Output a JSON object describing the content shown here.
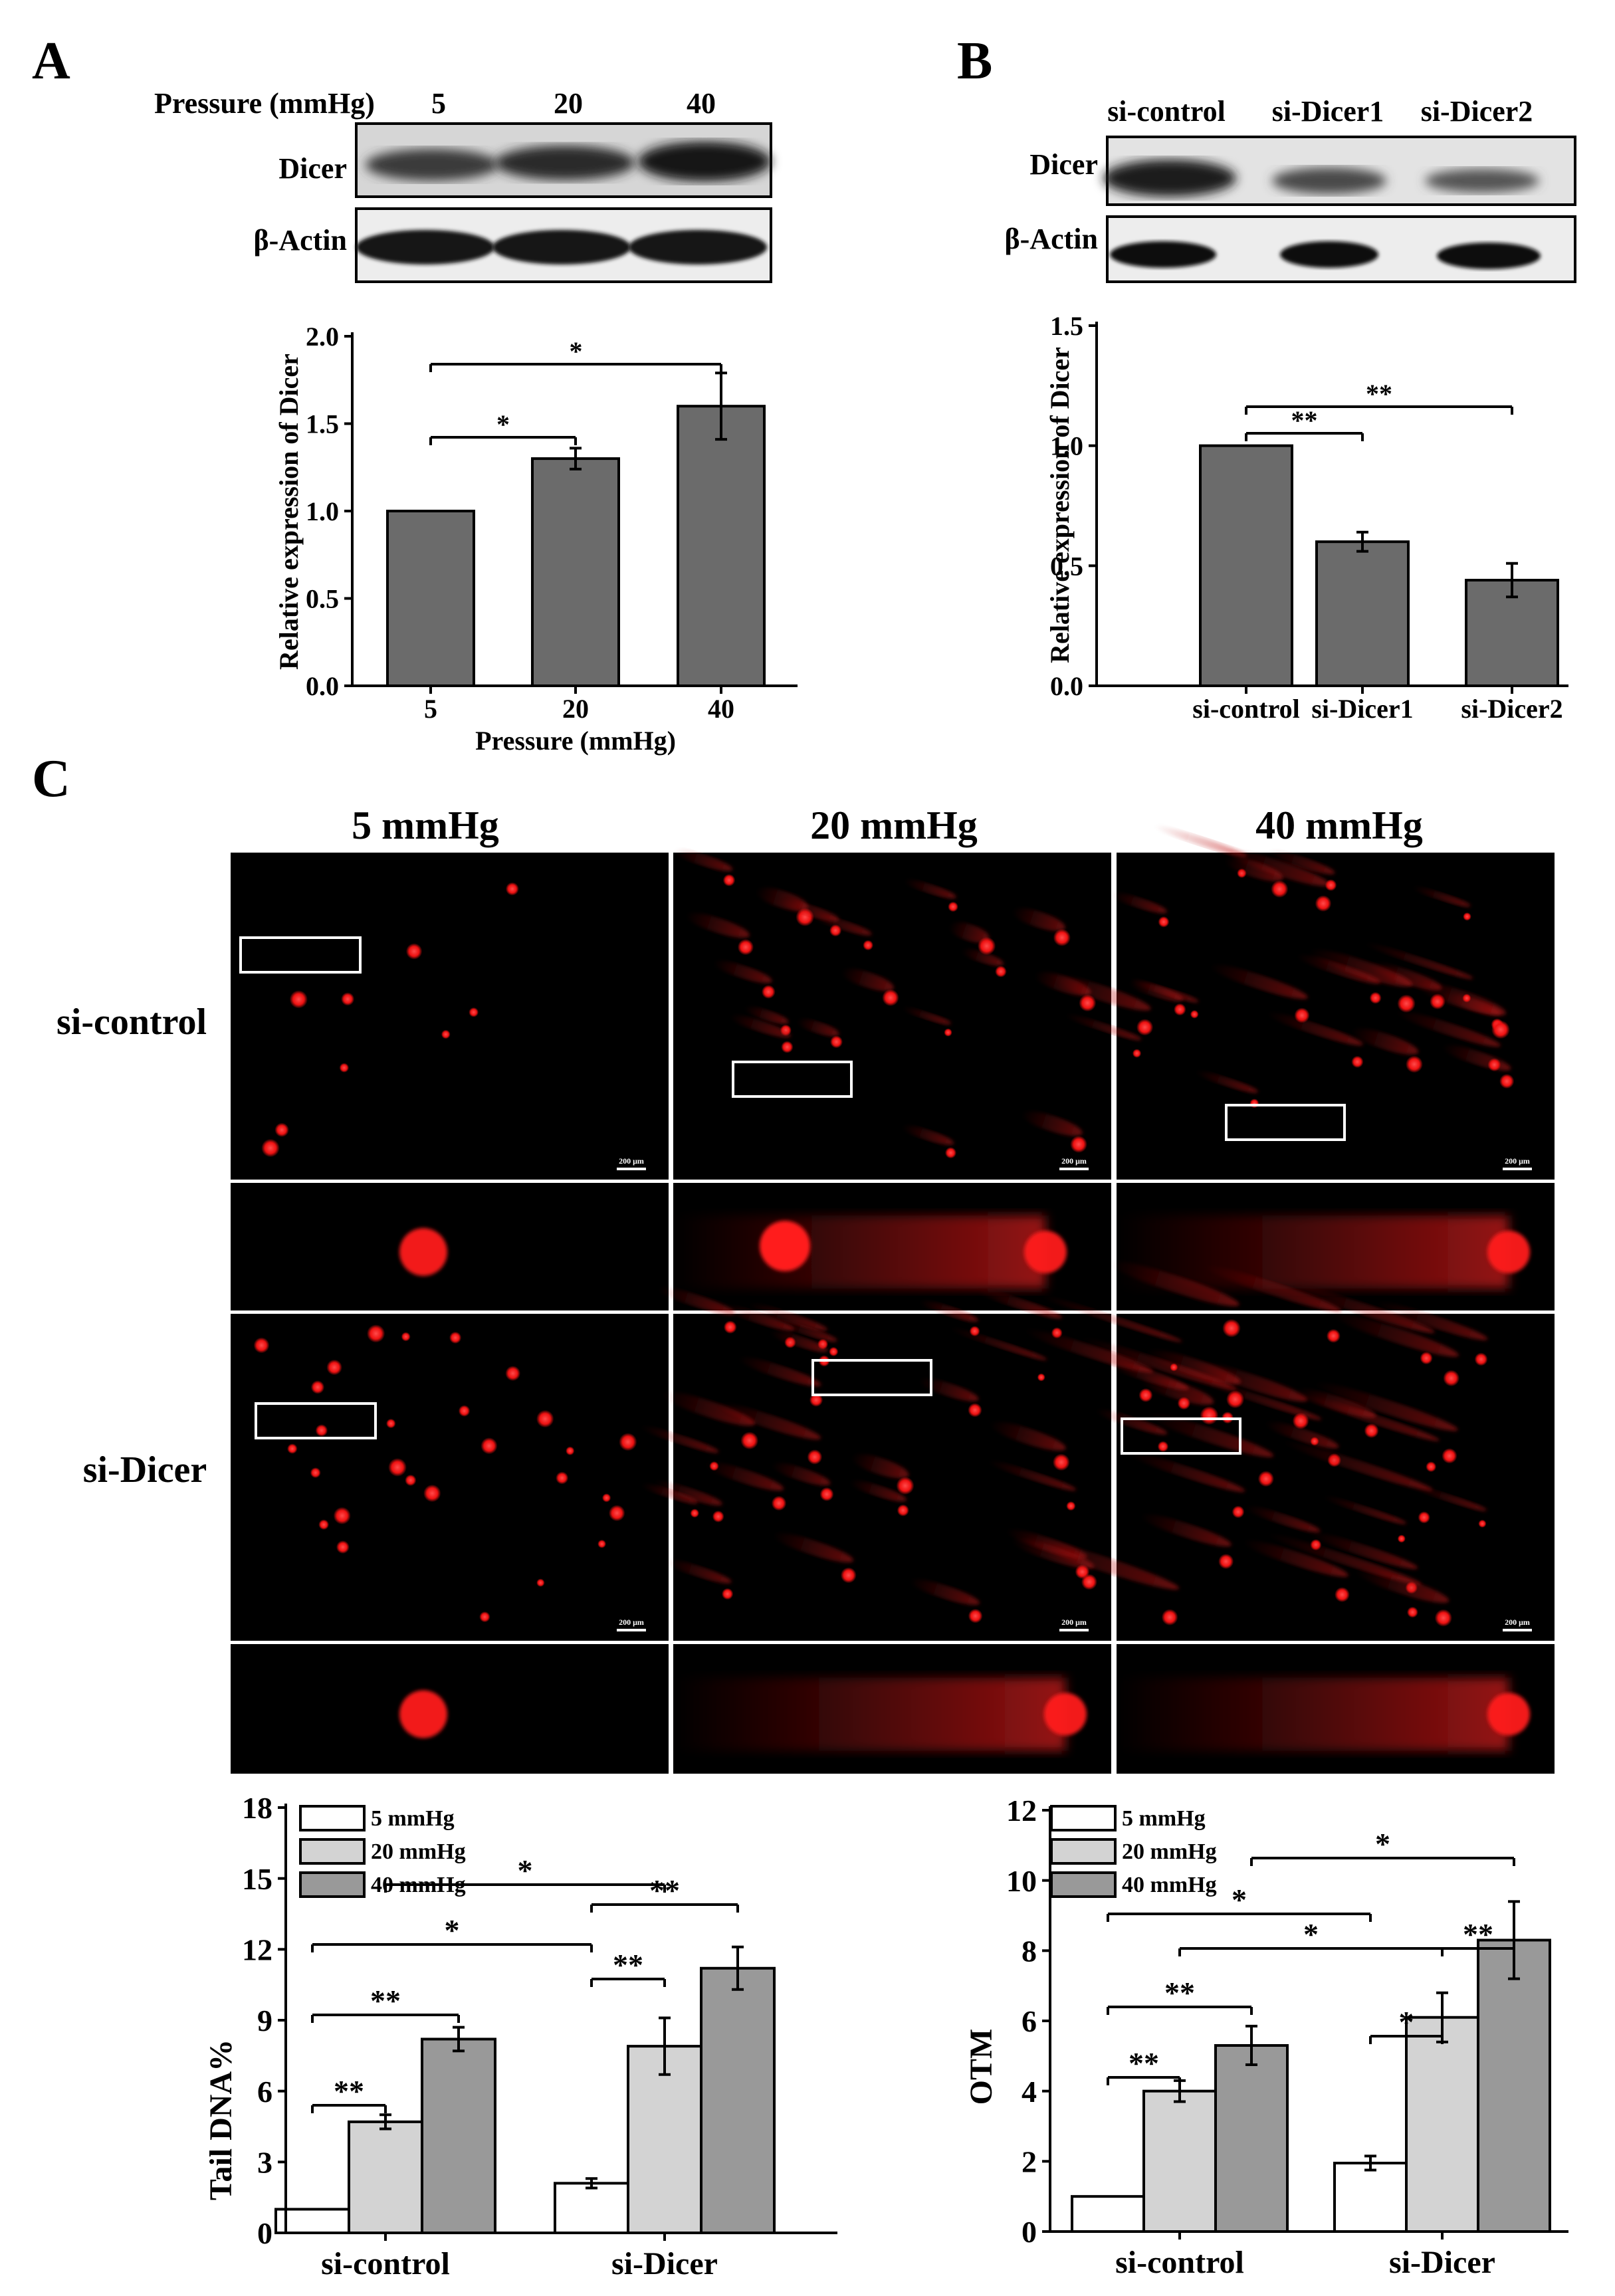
{
  "panels": {
    "A": {
      "letter": "A",
      "blot": {
        "header_label": "Pressure (mmHg)",
        "lane_labels": [
          "5",
          "20",
          "40"
        ],
        "row_labels": [
          "Dicer",
          "β-Actin"
        ]
      }
    },
    "B": {
      "letter": "B",
      "blot": {
        "lane_labels": [
          "si-control",
          "si-Dicer1",
          "si-Dicer2"
        ],
        "row_labels": [
          "Dicer",
          "β-Actin"
        ]
      }
    },
    "C": {
      "letter": "C",
      "column_headers": [
        "5 mmHg",
        "20 mmHg",
        "40 mmHg"
      ],
      "row_labels": [
        "si-control",
        "si-Dicer"
      ],
      "scale_bar_label": "200 μm"
    }
  },
  "chart_data": [
    {
      "id": "A-bar",
      "type": "bar",
      "categories": [
        "5",
        "20",
        "40"
      ],
      "values": [
        1.0,
        1.3,
        1.6
      ],
      "errors": [
        0.0,
        0.06,
        0.19
      ],
      "xlabel": "Pressure (mmHg)",
      "ylabel": "Relative expression of Dicer",
      "ylim": [
        0,
        2.0
      ],
      "yticks": [
        "0.0",
        "0.5",
        "1.0",
        "1.5",
        "2.0"
      ],
      "bar_color": "#6b6b6b",
      "significance": [
        {
          "from": "5",
          "to": "20",
          "label": "*"
        },
        {
          "from": "5",
          "to": "40",
          "label": "*"
        }
      ]
    },
    {
      "id": "B-bar",
      "type": "bar",
      "categories": [
        "si-control",
        "si-Dicer1",
        "si-Dicer2"
      ],
      "values": [
        1.0,
        0.6,
        0.44
      ],
      "errors": [
        0.0,
        0.04,
        0.07
      ],
      "xlabel": "",
      "ylabel": "Relative expression of Dicer",
      "ylim": [
        0,
        1.5
      ],
      "yticks": [
        "0.0",
        "0.5",
        "1.0",
        "1.5"
      ],
      "bar_color": "#6b6b6b",
      "significance": [
        {
          "from": "si-control",
          "to": "si-Dicer1",
          "label": "**"
        },
        {
          "from": "si-control",
          "to": "si-Dicer2",
          "label": "**"
        }
      ]
    },
    {
      "id": "C-tail",
      "type": "bar",
      "categories": [
        "si-control",
        "si-Dicer"
      ],
      "series": [
        {
          "name": "5 mmHg",
          "values": [
            1.0,
            2.1
          ],
          "errors": [
            0.0,
            0.2
          ],
          "color": "#ffffff"
        },
        {
          "name": "20 mmHg",
          "values": [
            4.7,
            7.9
          ],
          "errors": [
            0.3,
            1.2
          ],
          "color": "#d3d3d3"
        },
        {
          "name": "40 mmHg",
          "values": [
            8.2,
            11.2
          ],
          "errors": [
            0.5,
            0.9
          ],
          "color": "#999999"
        }
      ],
      "xlabel": "",
      "ylabel": "Tail DNA%",
      "ylim": [
        0,
        18
      ],
      "yticks": [
        "0",
        "3",
        "6",
        "9",
        "12",
        "15",
        "18"
      ],
      "legend_position": "top-left",
      "significance": [
        {
          "a": [
            0,
            0
          ],
          "b": [
            0,
            1
          ],
          "label": "**"
        },
        {
          "a": [
            0,
            0
          ],
          "b": [
            0,
            2
          ],
          "label": "**"
        },
        {
          "a": [
            0,
            0
          ],
          "b": [
            1,
            0
          ],
          "label": "*"
        },
        {
          "a": [
            0,
            1
          ],
          "b": [
            1,
            1
          ],
          "label": "*"
        },
        {
          "a": [
            1,
            0
          ],
          "b": [
            1,
            1
          ],
          "label": "**"
        },
        {
          "a": [
            1,
            0
          ],
          "b": [
            1,
            2
          ],
          "label": "**"
        }
      ]
    },
    {
      "id": "C-otm",
      "type": "bar",
      "categories": [
        "si-control",
        "si-Dicer"
      ],
      "series": [
        {
          "name": "5 mmHg",
          "values": [
            1.0,
            1.95
          ],
          "errors": [
            0.0,
            0.2
          ],
          "color": "#ffffff"
        },
        {
          "name": "20 mmHg",
          "values": [
            4.0,
            6.1
          ],
          "errors": [
            0.3,
            0.7
          ],
          "color": "#d3d3d3"
        },
        {
          "name": "40 mmHg",
          "values": [
            5.3,
            8.3
          ],
          "errors": [
            0.55,
            1.1
          ],
          "color": "#999999"
        }
      ],
      "xlabel": "",
      "ylabel": "OTM",
      "ylim": [
        0,
        12
      ],
      "yticks": [
        "0",
        "2",
        "4",
        "6",
        "8",
        "10",
        "12"
      ],
      "legend_position": "top-left",
      "significance": [
        {
          "a": [
            0,
            0
          ],
          "b": [
            0,
            1
          ],
          "label": "**"
        },
        {
          "a": [
            0,
            0
          ],
          "b": [
            0,
            2
          ],
          "label": "**"
        },
        {
          "a": [
            0,
            1
          ],
          "b": [
            1,
            1
          ],
          "label": "*"
        },
        {
          "a": [
            0,
            0
          ],
          "b": [
            1,
            0
          ],
          "label": "*"
        },
        {
          "a": [
            1,
            0
          ],
          "b": [
            1,
            1
          ],
          "label": "*"
        },
        {
          "a": [
            1,
            1
          ],
          "b": [
            1,
            2
          ],
          "label": "**"
        },
        {
          "a": [
            0,
            2
          ],
          "b": [
            1,
            2
          ],
          "label": "*"
        }
      ]
    }
  ]
}
